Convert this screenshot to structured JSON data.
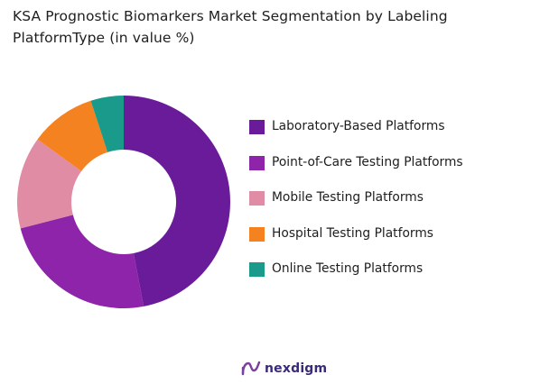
{
  "chart_data": {
    "type": "pie",
    "title": "KSA Prognostic Biomarkers  Market Segmentation by Labeling PlatformType (in value %)",
    "categories": [
      "Laboratory-Based Platforms",
      "Point-of-Care Testing Platforms",
      "Mobile Testing Platforms",
      "Hospital Testing Platforms",
      "Online Testing Platforms"
    ],
    "values": [
      47,
      24,
      14,
      10,
      5
    ],
    "colors": [
      "#6a1b9a",
      "#8e24aa",
      "#e08ca4",
      "#f58220",
      "#1a9a8a"
    ],
    "donut": true,
    "legend_position": "right"
  },
  "brand": {
    "name": "nexdigm",
    "icon": "nexdigm-logo-icon"
  }
}
